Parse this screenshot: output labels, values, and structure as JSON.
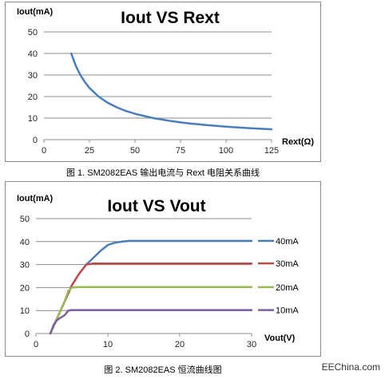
{
  "chart_data": [
    {
      "type": "line",
      "title": "Iout VS Rext",
      "xlabel": "Rext(Ω)",
      "ylabel": "Iout(mA)",
      "xlim": [
        0,
        125
      ],
      "ylim": [
        0,
        50
      ],
      "xticks": [
        "0",
        "25",
        "50",
        "75",
        "100",
        "125"
      ],
      "yticks": [
        "0",
        "10",
        "20",
        "30",
        "40",
        "50"
      ],
      "grid": true,
      "series": [
        {
          "color": "#4a7ebb",
          "x": [
            15,
            17.5,
            20,
            22.5,
            25,
            30,
            35,
            40,
            45,
            50,
            60,
            70,
            75,
            80,
            90,
            100,
            110,
            120,
            125
          ],
          "y": [
            40,
            34.3,
            30,
            26.7,
            24,
            20,
            17.1,
            15,
            13.3,
            12,
            10,
            8.6,
            8,
            7.5,
            6.7,
            6,
            5.5,
            5,
            4.8
          ]
        }
      ],
      "caption": "图 1. SM2082EAS 输出电流与 Rext 电阻关系曲线"
    },
    {
      "type": "line",
      "title": "Iout VS Vout",
      "xlabel": "Vout(V)",
      "ylabel": "Iout(mA)",
      "xlim": [
        0,
        30
      ],
      "ylim": [
        0,
        50
      ],
      "xticks": [
        "0",
        "10",
        "20",
        "30"
      ],
      "yticks": [
        "0",
        "10",
        "20",
        "30",
        "40",
        "50"
      ],
      "grid": true,
      "legend": "right",
      "series": [
        {
          "name": "40mA",
          "color": "#4a7ebb",
          "x": [
            2,
            3,
            4,
            5,
            6,
            7,
            8,
            9,
            10,
            11,
            12,
            13,
            15,
            20,
            25,
            30
          ],
          "y": [
            0,
            7,
            14,
            21,
            26,
            30,
            33,
            36,
            38.5,
            39.5,
            40,
            40.3,
            40.3,
            40.3,
            40.3,
            40.3
          ]
        },
        {
          "name": "30mA",
          "color": "#be4b48",
          "x": [
            2,
            3,
            4,
            5,
            6,
            7,
            8,
            10,
            15,
            20,
            25,
            30
          ],
          "y": [
            0,
            7,
            14,
            21,
            26,
            30,
            30.5,
            30.5,
            30.5,
            30.5,
            30.5,
            30.5
          ]
        },
        {
          "name": "20mA",
          "color": "#98b954",
          "x": [
            2,
            3,
            4,
            4.5,
            5,
            6,
            8,
            10,
            15,
            20,
            25,
            30
          ],
          "y": [
            0,
            7,
            14,
            18.5,
            20,
            20.2,
            20.2,
            20.2,
            20.2,
            20.2,
            20.2,
            20.2
          ]
        },
        {
          "name": "10mA",
          "color": "#7d60a0",
          "x": [
            2,
            2.5,
            3,
            4,
            4.5,
            5,
            8,
            10,
            15,
            20,
            25,
            30
          ],
          "y": [
            0,
            4,
            6,
            8,
            10,
            10.2,
            10.2,
            10.2,
            10.2,
            10.2,
            10.2,
            10.2
          ]
        }
      ],
      "caption": "图 2. SM2082EAS  恒流曲线图"
    }
  ],
  "watermark": "EEChina.com"
}
